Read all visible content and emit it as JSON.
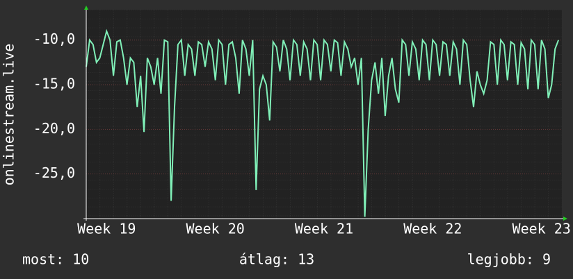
{
  "chart_data": {
    "type": "line",
    "y_label": "onlinestream.live",
    "color": "#80f0b8",
    "x": [
      0,
      0.25,
      0.5,
      0.75,
      1,
      1.25,
      1.5,
      1.75,
      2,
      2.25,
      2.5,
      2.75,
      3,
      3.25,
      3.5,
      3.75,
      4,
      4.25,
      4.5,
      4.75,
      5,
      5.25,
      5.5,
      5.75,
      6,
      6.25,
      6.5,
      6.75,
      7,
      7.25,
      7.5,
      7.75,
      8,
      8.25,
      8.5,
      8.75,
      9,
      9.25,
      9.5,
      9.75,
      10,
      10.25,
      10.5,
      10.75,
      11,
      11.25,
      11.5,
      11.75,
      12,
      12.25,
      12.5,
      12.75,
      13,
      13.25,
      13.5,
      13.75,
      14,
      14.25,
      14.5,
      14.75,
      15,
      15.25,
      15.5,
      15.75,
      16,
      16.25,
      16.5,
      16.75,
      17,
      17.25,
      17.5,
      17.75,
      18,
      18.25,
      18.5,
      18.75,
      19,
      19.25,
      19.5,
      19.75,
      20,
      20.25,
      20.5,
      20.75,
      21,
      21.25,
      21.5,
      21.75,
      22,
      22.25,
      22.5,
      22.75,
      23,
      23.25,
      23.5,
      23.75,
      24,
      24.25,
      24.5,
      24.75,
      25,
      25.25,
      25.5,
      25.75,
      26,
      26.25,
      26.5,
      26.75,
      27,
      27.25,
      27.5,
      27.75,
      28,
      28.25,
      28.5,
      28.75,
      29,
      29.25,
      29.5,
      29.75,
      30,
      30.25,
      30.5,
      30.75,
      31,
      31.25,
      31.5,
      31.75,
      32,
      32.25,
      32.5,
      32.75,
      33,
      33.25,
      33.5,
      33.75,
      34,
      34.25,
      34.5,
      34.75
    ],
    "values": [
      -13,
      -10,
      -10.5,
      -12.5,
      -12,
      -10.5,
      -9,
      -10,
      -14,
      -10.2,
      -10,
      -12,
      -15,
      -12,
      -12.5,
      -17.5,
      -14,
      -20.3,
      -12,
      -13,
      -15,
      -12,
      -16,
      -10,
      -10.2,
      -28,
      -17.5,
      -10.5,
      -10,
      -14,
      -10.5,
      -11,
      -14,
      -10.2,
      -10.5,
      -13,
      -10.2,
      -11,
      -14.5,
      -10,
      -10.5,
      -15,
      -10.5,
      -10.2,
      -12,
      -16,
      -10,
      -11,
      -14,
      -10,
      -26.8,
      -15.5,
      -14,
      -15,
      -19,
      -10.2,
      -10.8,
      -13.5,
      -10,
      -11,
      -14.5,
      -10,
      -10.5,
      -14,
      -10.2,
      -11,
      -14.5,
      -10,
      -10.5,
      -14.5,
      -10,
      -10.5,
      -13.5,
      -10,
      -10.3,
      -14,
      -10.2,
      -11,
      -13,
      -12,
      -15,
      -12,
      -29.8,
      -20,
      -14.5,
      -12.5,
      -16,
      -12,
      -18.5,
      -14,
      -12,
      -15.5,
      -17,
      -10,
      -10.5,
      -14,
      -10.2,
      -11,
      -14.5,
      -10,
      -10.5,
      -14.5,
      -10,
      -10.5,
      -14,
      -10.2,
      -10.5,
      -14,
      -10.2,
      -11,
      -15,
      -10,
      -10.5,
      -14.5,
      -17.5,
      -13.5,
      -15,
      -16,
      -14.5,
      -10.2,
      -10.5,
      -15,
      -10,
      -10.5,
      -14.5,
      -10.2,
      -10.5,
      -15,
      -10.3,
      -11,
      -15.5,
      -10,
      -10.5,
      -15.5,
      -10,
      -11,
      -16.5,
      -15,
      -11,
      -10
    ],
    "xlim": [
      0,
      35
    ],
    "xticks": [
      {
        "value": 1.5,
        "label": "Week 19"
      },
      {
        "value": 9.5,
        "label": "Week 20"
      },
      {
        "value": 17.5,
        "label": "Week 21"
      },
      {
        "value": 25.5,
        "label": "Week 22"
      },
      {
        "value": 33.5,
        "label": "Week 23"
      }
    ],
    "ylim": [
      -30,
      -6.6
    ],
    "yticks": [
      {
        "value": -10,
        "label": "-10,0"
      },
      {
        "value": -15,
        "label": "-15,0"
      },
      {
        "value": -20,
        "label": "-20,0"
      },
      {
        "value": -25,
        "label": "-25,0"
      }
    ],
    "grid": true,
    "footer": [
      "most: 10",
      "átlag: 13",
      "legjobb: 9"
    ]
  }
}
